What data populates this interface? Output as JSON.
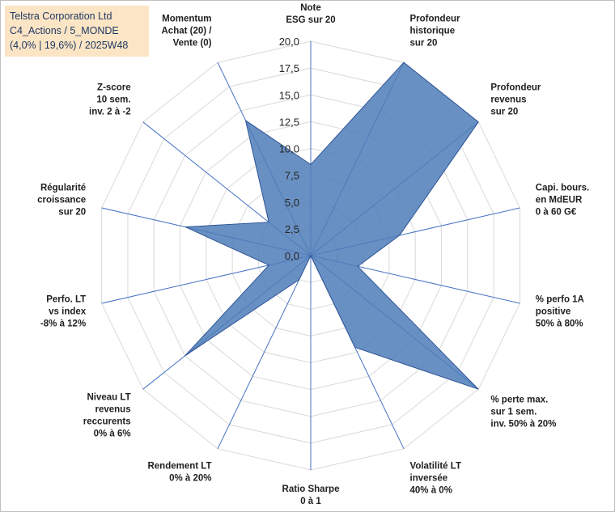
{
  "header": {
    "lines": [
      "Telstra Corporation Ltd",
      "C4_Actions / 5_MONDE",
      "(4,0% | 19,6%) / 2025W48"
    ]
  },
  "chart_data": {
    "type": "radar",
    "scale": {
      "min": 0,
      "max": 20,
      "step": 2.5
    },
    "ticks": [
      "0,0",
      "2,5",
      "5,0",
      "7,5",
      "10,0",
      "12,5",
      "15,0",
      "17,5",
      "20,0"
    ],
    "axes": [
      {
        "label": [
          "Note",
          "ESG sur 20"
        ],
        "value": 8.5
      },
      {
        "label": [
          "Profondeur",
          "historique",
          "sur 20"
        ],
        "value": 20
      },
      {
        "label": [
          "Profondeur",
          "revenus",
          "sur 20"
        ],
        "value": 20
      },
      {
        "label": [
          "Capi. bours.",
          "en MdEUR",
          "0 à 60 G€"
        ],
        "value": 8.5
      },
      {
        "label": [
          "% perfo 1A",
          "positive",
          "50% à 80%"
        ],
        "value": 4.5
      },
      {
        "label": [
          "% perte max.",
          "sur 1 sem.",
          "inv. 50% à 20%"
        ],
        "value": 20
      },
      {
        "label": [
          "Volatilité LT",
          "inversée",
          "40% à 0%"
        ],
        "value": 9.5
      },
      {
        "label": [
          "Ratio Sharpe",
          "0 à 1"
        ],
        "value": 0
      },
      {
        "label": [
          "Rendement LT",
          "0% à 20%"
        ],
        "value": 2.5
      },
      {
        "label": [
          "Niveau LT",
          "revenus",
          "reccurents",
          "0% à 6%"
        ],
        "value": 15
      },
      {
        "label": [
          "Perfo. LT",
          "vs index",
          "-8% à 12%"
        ],
        "value": 4
      },
      {
        "label": [
          "Régularité",
          "croissance",
          "sur 20"
        ],
        "value": 12
      },
      {
        "label": [
          "Z-score",
          "10 sem.",
          "inv. 2 à -2"
        ],
        "value": 5
      },
      {
        "label": [
          "Momentum",
          "Achat (20) /",
          "Vente (0)"
        ],
        "value": 14
      }
    ],
    "colors": {
      "fill": "#4f7db8",
      "stroke": "#2f5597",
      "grid": "#d9d9d9",
      "spokes": "#4472c4"
    }
  }
}
